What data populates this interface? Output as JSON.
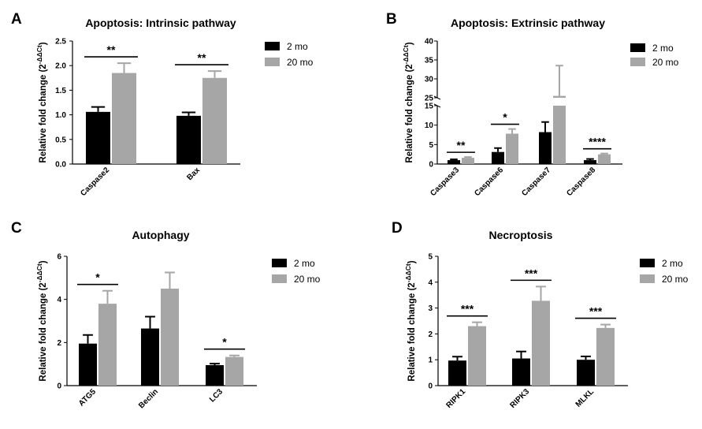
{
  "colors": {
    "mo2": "#000000",
    "mo20": "#a6a6a6",
    "axis": "#000000"
  },
  "legend_labels": [
    "2 mo",
    "20 mo"
  ],
  "ylabel": "Relative fold change",
  "ylabel_formula": "(2",
  "ylabel_superscript": "-ΔΔCt",
  "ylabel_close": ")",
  "chart_data": [
    {
      "panel": "A",
      "type": "bar",
      "title": "Apoptosis: Intrinsic pathway",
      "categories": [
        "Caspase2",
        "Bax"
      ],
      "series": [
        {
          "name": "2 mo",
          "values": [
            1.06,
            0.98
          ],
          "errors": [
            0.1,
            0.07
          ]
        },
        {
          "name": "20 mo",
          "values": [
            1.85,
            1.75
          ],
          "errors": [
            0.2,
            0.14
          ]
        }
      ],
      "significance": [
        "**",
        "**"
      ],
      "ylim": [
        0,
        2.5
      ],
      "yticks": [
        "0.0",
        "0.5",
        "1.0",
        "1.5",
        "2.0",
        "2.5"
      ],
      "legend_position": "top-right"
    },
    {
      "panel": "B",
      "type": "bar",
      "title": "Apoptosis: Extrinsic pathway",
      "categories": [
        "Caspase3",
        "Caspase6",
        "Caspase7",
        "Caspase8"
      ],
      "series": [
        {
          "name": "2 mo",
          "values": [
            1.0,
            3.1,
            8.2,
            1.0
          ],
          "errors": [
            0.2,
            1.0,
            2.6,
            0.3
          ]
        },
        {
          "name": "20 mo",
          "values": [
            1.6,
            7.8,
            25.5,
            2.5
          ],
          "errors": [
            0.2,
            1.2,
            8.0,
            0.2
          ]
        }
      ],
      "significance": [
        "**",
        "*",
        "",
        "****"
      ],
      "axis_break": true,
      "ylim_lower": [
        0,
        15
      ],
      "ylim_upper": [
        25,
        40
      ],
      "yticks": [
        "0",
        "5",
        "10",
        "15",
        "25",
        "30",
        "35",
        "40"
      ],
      "legend_position": "top-right"
    },
    {
      "panel": "C",
      "type": "bar",
      "title": "Autophagy",
      "categories": [
        "ATG5",
        "Beclin",
        "LC3"
      ],
      "series": [
        {
          "name": "2 mo",
          "values": [
            1.95,
            2.65,
            0.95
          ],
          "errors": [
            0.4,
            0.55,
            0.07
          ]
        },
        {
          "name": "20 mo",
          "values": [
            3.8,
            4.5,
            1.33
          ],
          "errors": [
            0.6,
            0.75,
            0.07
          ]
        }
      ],
      "significance": [
        "*",
        "",
        "*"
      ],
      "ylim": [
        0,
        6
      ],
      "yticks": [
        "0",
        "2",
        "4",
        "6"
      ],
      "legend_position": "top-right"
    },
    {
      "panel": "D",
      "type": "bar",
      "title": "Necroptosis",
      "categories": [
        "RIPK1",
        "RIPK3",
        "MLKL"
      ],
      "series": [
        {
          "name": "2 mo",
          "values": [
            0.97,
            1.05,
            1.0
          ],
          "errors": [
            0.15,
            0.27,
            0.13
          ]
        },
        {
          "name": "20 mo",
          "values": [
            2.3,
            3.28,
            2.23
          ],
          "errors": [
            0.15,
            0.55,
            0.13
          ]
        }
      ],
      "significance": [
        "***",
        "***",
        "***"
      ],
      "ylim": [
        0,
        5
      ],
      "yticks": [
        "0",
        "1",
        "2",
        "3",
        "4",
        "5"
      ],
      "legend_position": "top-right"
    }
  ]
}
